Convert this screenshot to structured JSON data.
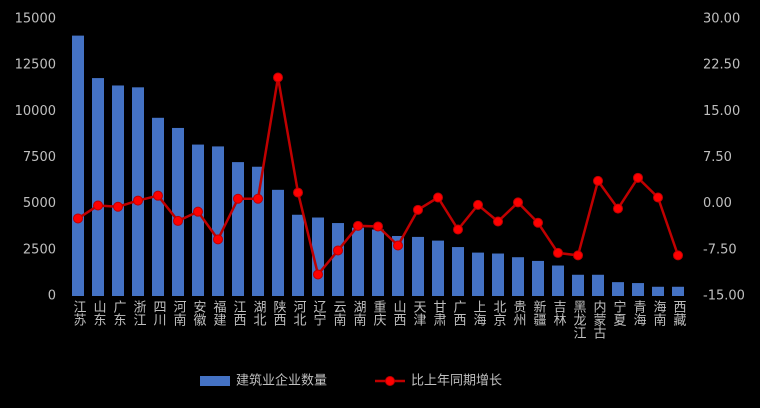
{
  "chart_data": {
    "type": "bar-line",
    "categories": [
      "江苏",
      "山东",
      "广东",
      "浙江",
      "四川",
      "河南",
      "安徽",
      "福建",
      "江西",
      "湖北",
      "陕西",
      "河北",
      "辽宁",
      "云南",
      "湖南",
      "重庆",
      "山西",
      "天津",
      "甘肃",
      "广西",
      "上海",
      "北京",
      "贵州",
      "新疆",
      "吉林",
      "黑龙江",
      "内蒙古",
      "宁夏",
      "青海",
      "海南",
      "西藏"
    ],
    "series": [
      {
        "name": "建筑业企业数量",
        "type": "bar",
        "color": "#4472c4",
        "values": [
          14100,
          11800,
          11400,
          11300,
          9650,
          9100,
          8200,
          8100,
          7250,
          7000,
          5750,
          4400,
          4250,
          3950,
          3700,
          3600,
          3250,
          3200,
          3000,
          2650,
          2350,
          2300,
          2100,
          1900,
          1650,
          1150,
          1150,
          750,
          700,
          500,
          500
        ]
      },
      {
        "name": "比上年同期增长",
        "type": "line",
        "axis": "y2",
        "color": "#c00000",
        "values": [
          -2.4,
          -0.3,
          -0.5,
          0.5,
          1.3,
          -2.8,
          -1.3,
          -5.8,
          0.8,
          0.8,
          20.5,
          1.8,
          -11.5,
          -7.6,
          -3.6,
          -3.7,
          -6.8,
          -1.0,
          1.0,
          -4.2,
          -0.2,
          -2.9,
          0.2,
          -3.1,
          -8.0,
          -8.4,
          3.7,
          -0.8,
          4.2,
          1.0,
          -8.4
        ]
      }
    ],
    "ylim": [
      0,
      15000
    ],
    "yticks": [
      0,
      2500,
      5000,
      7500,
      10000,
      12500,
      15000
    ],
    "y2lim": [
      -15,
      30
    ],
    "y2ticks": [
      {
        "value": -15,
        "label": "-15.00"
      },
      {
        "value": -7.5,
        "label": "-7.50"
      },
      {
        "value": 0,
        "label": "0.00"
      },
      {
        "value": 7.5,
        "label": "7.50"
      },
      {
        "value": 15,
        "label": "15.00"
      },
      {
        "value": 22.5,
        "label": "22.50"
      },
      {
        "value": 30,
        "label": "30.00"
      }
    ]
  }
}
